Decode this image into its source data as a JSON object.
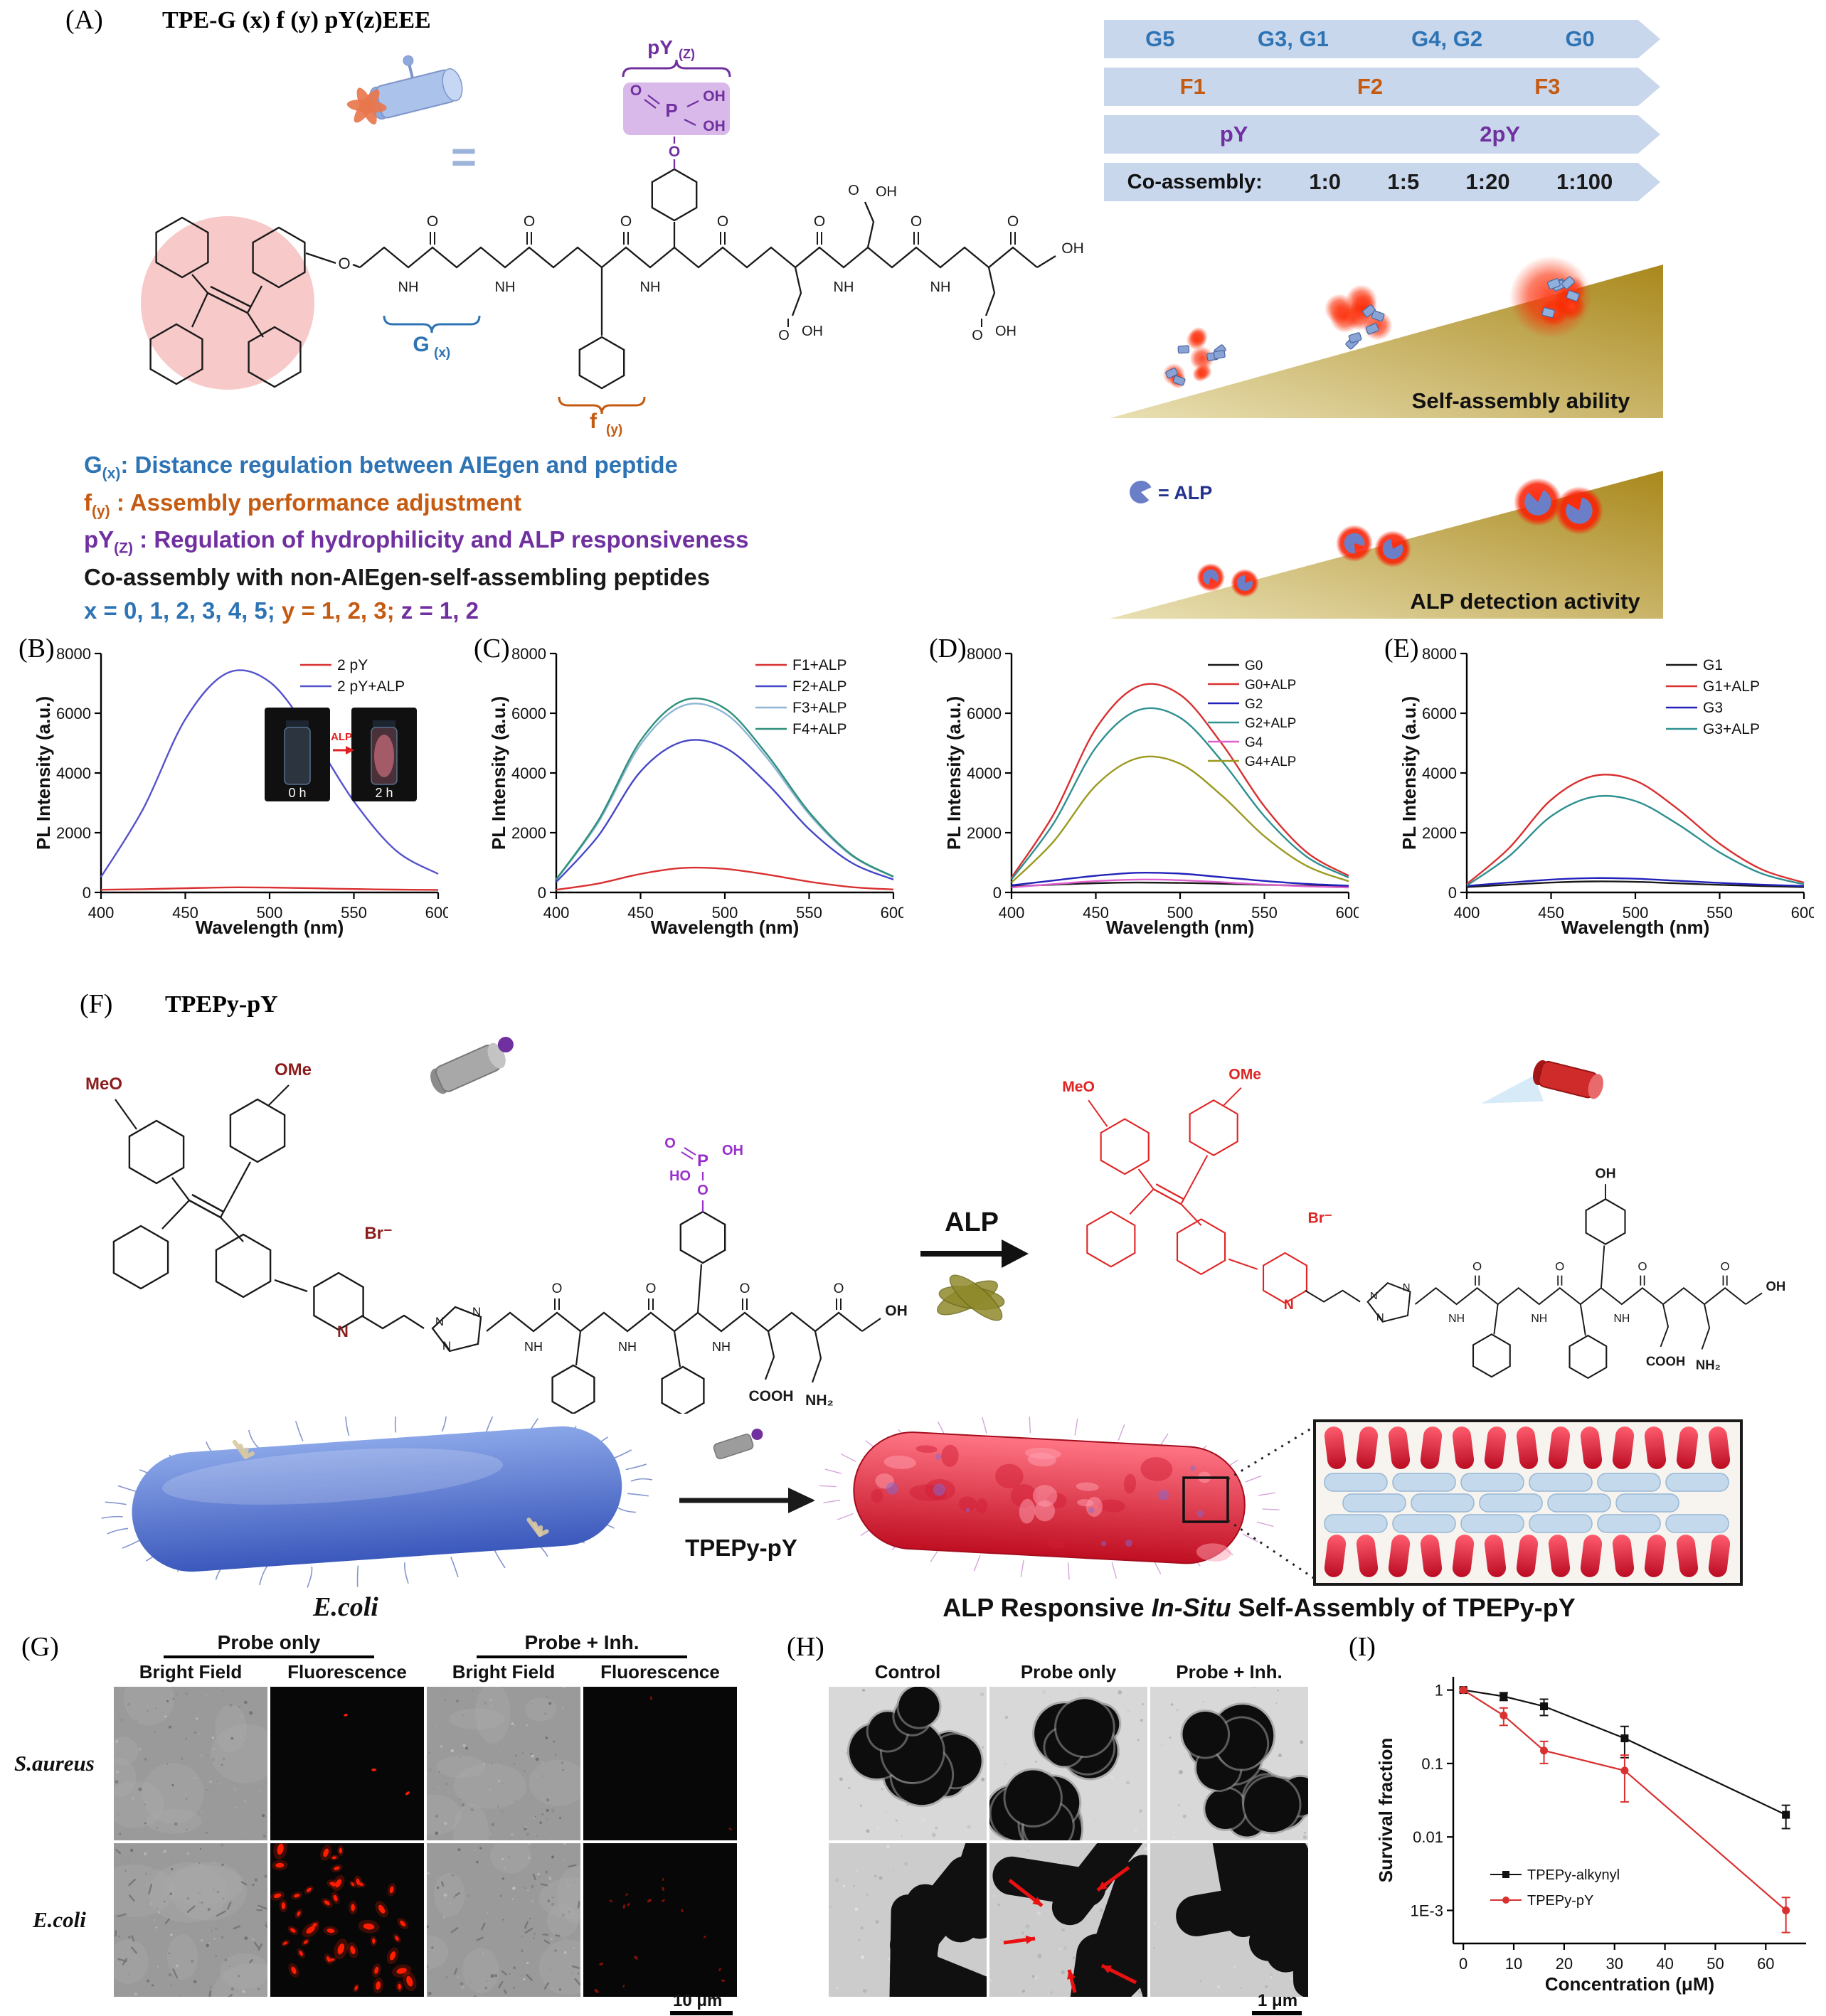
{
  "colors": {
    "blue": "#2e74b5",
    "orange": "#c55a11",
    "purple": "#7030a0",
    "red_accent": "#e8291c",
    "banner_bg": "#c9d7ec",
    "gold": "#b6951f"
  },
  "panelA": {
    "label": "(A)",
    "title": "TPE-G (x) f (y) pY(z)EEE",
    "structure_tags": {
      "py": "pY",
      "pyz": "(Z)",
      "g": "G",
      "gx": "(x)",
      "f": "f",
      "fy": "(y)"
    },
    "atoms": {
      "o": "O",
      "oh": "OH",
      "ho": "HO",
      "nh": "NH",
      "n": "N",
      "p": "P",
      "cooh": "COOH",
      "nh2": "NH₂"
    },
    "equals": "=",
    "banners": [
      {
        "color": "#2e74b5",
        "items": [
          "G5",
          "G3, G1",
          "G4, G2",
          "G0"
        ]
      },
      {
        "color": "#c55a11",
        "items": [
          "F1",
          "F2",
          "F3"
        ]
      },
      {
        "color": "#7030a0",
        "items": [
          "pY",
          "2pY"
        ]
      },
      {
        "color": "#1a1a1a",
        "label": "Co-assembly:",
        "items": [
          "1:0",
          "1:5",
          "1:20",
          "1:100"
        ]
      }
    ],
    "wedge1": "Self-assembly ability",
    "wedge2": "ALP detection activity",
    "alp_eq": "= ALP",
    "legend": [
      {
        "head": "G",
        "sub": "(x)",
        "sep": ": ",
        "text": "Distance regulation between AIEgen and peptide",
        "color": "#2e74b5"
      },
      {
        "head": "f",
        "sub": "(y)",
        "sep": " : ",
        "text": "Assembly performance adjustment",
        "color": "#c55a11"
      },
      {
        "head": "pY",
        "sub": "(Z)",
        "sep": " : ",
        "text": "Regulation of hydrophilicity and ALP responsiveness",
        "color": "#7030a0"
      },
      {
        "head": "",
        "sub": "",
        "sep": "",
        "text": "Co-assembly with non-AIEgen-self-assembling peptides",
        "color": "#1a1a1a"
      }
    ],
    "variables": [
      {
        "text": "x = 0, 1, 2, 3, 4, 5; ",
        "color": "#2e74b5"
      },
      {
        "text": "y = 1, 2, 3; ",
        "color": "#c55a11"
      },
      {
        "text": "z = 1, 2",
        "color": "#7030a0"
      }
    ]
  },
  "chart_data": [
    {
      "id": "B",
      "panel_label": "(B)",
      "type": "line",
      "xlabel": "Wavelength (nm)",
      "ylabel": "PL Intensity (a.u.)",
      "x": [
        400,
        425,
        450,
        475,
        500,
        525,
        550,
        575,
        600
      ],
      "xticks": [
        400,
        450,
        500,
        550,
        600
      ],
      "yticks": [
        0,
        2000,
        4000,
        6000,
        8000
      ],
      "ylim": [
        0,
        8000
      ],
      "series": [
        {
          "name": "2 pY",
          "color": "#d93030",
          "values": [
            90,
            110,
            140,
            170,
            165,
            140,
            115,
            95,
            85
          ]
        },
        {
          "name": "2 pY+ALP",
          "color": "#5552cc",
          "values": [
            520,
            2800,
            5800,
            7350,
            7050,
            5250,
            3050,
            1400,
            620
          ]
        }
      ],
      "inset": {
        "labels": [
          "0 h",
          "2 h"
        ],
        "arrow": "ALP"
      }
    },
    {
      "id": "C",
      "panel_label": "(C)",
      "type": "line",
      "xlabel": "Wavelength (nm)",
      "ylabel": "PL Intensity (a.u.)",
      "x": [
        400,
        425,
        450,
        475,
        500,
        525,
        550,
        575,
        600
      ],
      "xticks": [
        400,
        450,
        500,
        550,
        600
      ],
      "yticks": [
        0,
        2000,
        4000,
        6000,
        8000
      ],
      "ylim": [
        0,
        8000
      ],
      "series": [
        {
          "name": "F1+ALP",
          "color": "#d93030",
          "values": [
            90,
            300,
            620,
            820,
            790,
            600,
            360,
            180,
            100
          ]
        },
        {
          "name": "F2+ALP",
          "color": "#4646c8",
          "values": [
            350,
            1900,
            4050,
            5050,
            4850,
            3650,
            2120,
            1000,
            430
          ]
        },
        {
          "name": "F3+ALP",
          "color": "#8fb5d5",
          "values": [
            430,
            2350,
            4950,
            6250,
            6000,
            4500,
            2620,
            1240,
            520
          ]
        },
        {
          "name": "F4+ALP",
          "color": "#2e8f7a",
          "values": [
            440,
            2420,
            5080,
            6420,
            6160,
            4620,
            2690,
            1270,
            530
          ]
        }
      ]
    },
    {
      "id": "D",
      "panel_label": "(D)",
      "type": "line",
      "xlabel": "Wavelength (nm)",
      "ylabel": "PL Intensity (a.u.)",
      "x": [
        400,
        425,
        450,
        475,
        500,
        525,
        550,
        575,
        600
      ],
      "xticks": [
        400,
        450,
        500,
        550,
        600
      ],
      "yticks": [
        0,
        2000,
        4000,
        6000,
        8000
      ],
      "ylim": [
        0,
        8000
      ],
      "series": [
        {
          "name": "G0",
          "color": "#1a1a1a",
          "values": [
            200,
            260,
            310,
            330,
            320,
            290,
            255,
            225,
            200
          ]
        },
        {
          "name": "G0+ALP",
          "color": "#d93030",
          "values": [
            500,
            2620,
            5480,
            6900,
            6620,
            4960,
            2880,
            1350,
            560
          ]
        },
        {
          "name": "G2",
          "color": "#2222bb",
          "values": [
            240,
            400,
            560,
            660,
            630,
            510,
            385,
            285,
            225
          ]
        },
        {
          "name": "G2+ALP",
          "color": "#2f9090",
          "values": [
            440,
            2320,
            4850,
            6100,
            5850,
            4380,
            2550,
            1200,
            500
          ]
        },
        {
          "name": "G4",
          "color": "#e060d0",
          "values": [
            170,
            280,
            380,
            430,
            410,
            340,
            265,
            205,
            165
          ]
        },
        {
          "name": "G4+ALP",
          "color": "#9a9a20",
          "values": [
            330,
            1710,
            3580,
            4500,
            4310,
            3230,
            1880,
            890,
            375
          ]
        }
      ]
    },
    {
      "id": "E",
      "panel_label": "(E)",
      "type": "line",
      "xlabel": "Wavelength (nm)",
      "ylabel": "PL Intensity (a.u.)",
      "x": [
        400,
        425,
        450,
        475,
        500,
        525,
        550,
        575,
        600
      ],
      "xticks": [
        400,
        450,
        500,
        550,
        600
      ],
      "yticks": [
        0,
        2000,
        4000,
        6000,
        8000
      ],
      "ylim": [
        0,
        8000
      ],
      "series": [
        {
          "name": "G1",
          "color": "#1a1a1a",
          "values": [
            180,
            260,
            330,
            370,
            355,
            305,
            255,
            215,
            180
          ]
        },
        {
          "name": "G1+ALP",
          "color": "#d93030",
          "values": [
            280,
            1480,
            3100,
            3900,
            3740,
            2800,
            1630,
            770,
            330
          ]
        },
        {
          "name": "G3",
          "color": "#2222bb",
          "values": [
            220,
            330,
            430,
            480,
            460,
            390,
            320,
            260,
            215
          ]
        },
        {
          "name": "G3+ALP",
          "color": "#2f9090",
          "values": [
            230,
            1210,
            2550,
            3200,
            3060,
            2290,
            1340,
            630,
            270
          ]
        }
      ]
    },
    {
      "id": "I",
      "panel_label": "(I)",
      "type": "line-log",
      "xlabel": "Concentration (μM)",
      "ylabel": "Survival fraction",
      "xticks": [
        0,
        10,
        20,
        30,
        40,
        50,
        60
      ],
      "ytick_labels": [
        "1",
        "0.1",
        "0.01",
        "1E-3"
      ],
      "ytick_values": [
        1,
        0.1,
        0.01,
        0.001
      ],
      "series": [
        {
          "name": "TPEPy-alkynyl",
          "color": "#111111",
          "marker": "square",
          "x": [
            0,
            8,
            16,
            32,
            64
          ],
          "values": [
            1,
            0.82,
            0.6,
            0.22,
            0.02
          ],
          "err": [
            0.06,
            0.1,
            0.15,
            0.1,
            0.007
          ]
        },
        {
          "name": "TPEPy-pY",
          "color": "#d93030",
          "marker": "circle",
          "x": [
            0,
            8,
            16,
            32,
            64
          ],
          "values": [
            1,
            0.45,
            0.15,
            0.08,
            0.001
          ],
          "err": [
            0.06,
            0.12,
            0.05,
            0.05,
            0.0005
          ]
        }
      ]
    }
  ],
  "panelF": {
    "label": "(F)",
    "title": "TPEPy-pY",
    "alp": "ALP",
    "arrow_label": "TPEPy-pY",
    "ecoli": "E.coli",
    "caption": [
      "ALP Responsive ",
      "In-Situ",
      " Self-Assembly of TPEPy-pY"
    ],
    "atoms": {
      "meo": "MeO",
      "ome": "OMe",
      "br": "Br⁻",
      "n": "N",
      "nh": "NH",
      "o": "O",
      "ho": "HO",
      "oh": "OH",
      "p": "P",
      "cooh": "COOH",
      "nh2": "NH₂"
    }
  },
  "panelG": {
    "label": "(G)",
    "group_headers": [
      "Probe only",
      "Probe + Inh."
    ],
    "col_headers": [
      "Bright Field",
      "Fluorescence",
      "Bright Field",
      "Fluorescence"
    ],
    "row_labels": [
      "S.aureus",
      "E.coli"
    ],
    "scale_bar": "10 μm"
  },
  "panelH": {
    "label": "(H)",
    "col_headers": [
      "Control",
      "Probe only",
      "Probe + Inh."
    ],
    "scale_bar": "1 μm"
  }
}
